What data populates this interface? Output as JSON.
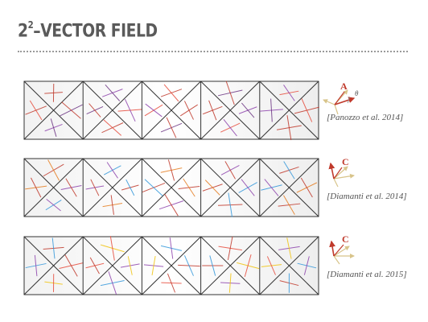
{
  "slide": {
    "title_base": "2",
    "title_sup": "2",
    "title_rest": "–VECTOR FIELD"
  },
  "rows": [
    {
      "label": "A",
      "citation": "[Panozzo et al. 2014]",
      "theta": "θ"
    },
    {
      "label": "C",
      "citation": "[Diamanti et al. 2014]"
    },
    {
      "label": "C",
      "citation": "[Diamanti et al. 2015]"
    }
  ],
  "colors": {
    "title": "#5a5a5a",
    "label": "#c0392b",
    "mesh": "#333333"
  }
}
